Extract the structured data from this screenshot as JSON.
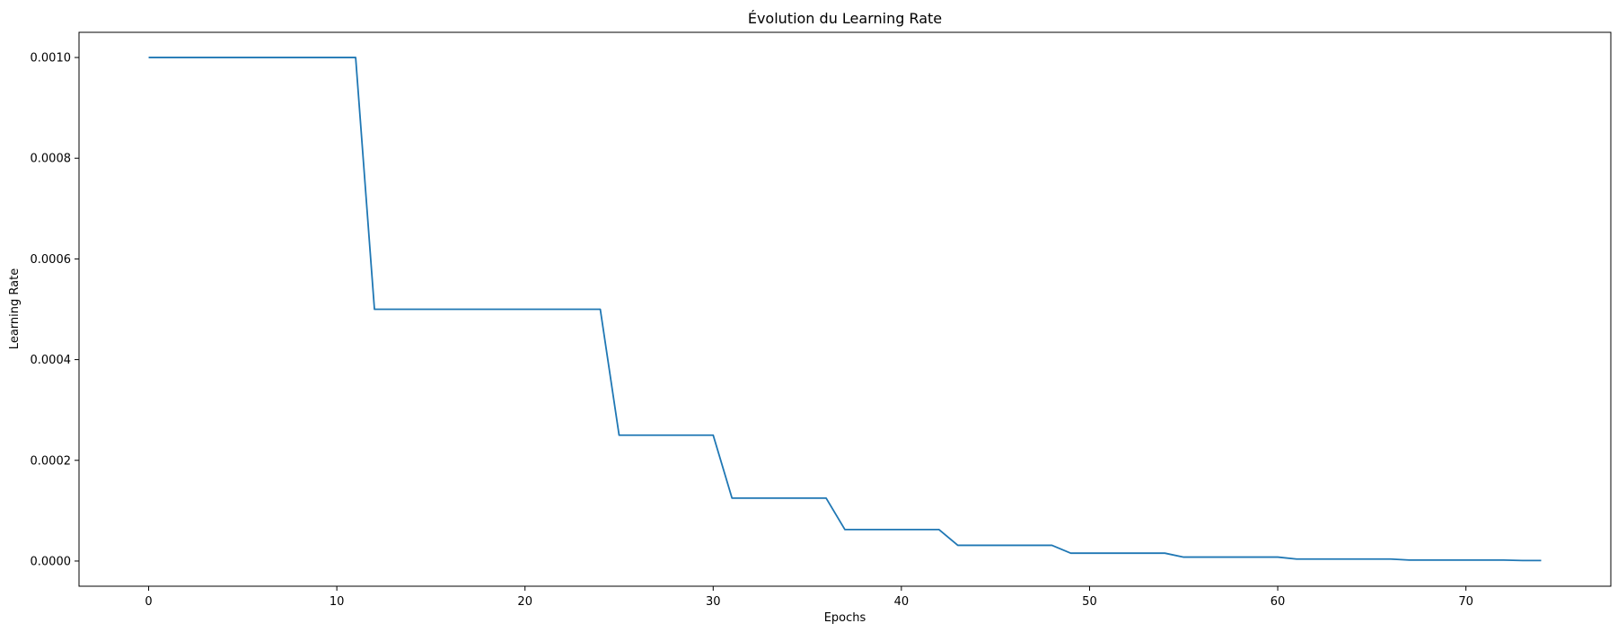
{
  "chart_data": {
    "type": "line",
    "title": "Évolution du Learning Rate",
    "xlabel": "Epochs",
    "ylabel": "Learning Rate",
    "xlim": [
      -3.7,
      77.7
    ],
    "ylim": [
      -5e-05,
      0.00105
    ],
    "x_ticks": [
      0,
      10,
      20,
      30,
      40,
      50,
      60,
      70
    ],
    "x_tick_labels": [
      "0",
      "10",
      "20",
      "30",
      "40",
      "50",
      "60",
      "70"
    ],
    "y_ticks": [
      0.0,
      0.0002,
      0.0004,
      0.0006,
      0.0008,
      0.001
    ],
    "y_tick_labels": [
      "0.0000",
      "0.0002",
      "0.0004",
      "0.0006",
      "0.0008",
      "0.0010"
    ],
    "grid": false,
    "legend": "none",
    "series": [
      {
        "color": "#1f77b4",
        "x": [
          0,
          1,
          2,
          3,
          4,
          5,
          6,
          7,
          8,
          9,
          10,
          11,
          12,
          13,
          14,
          15,
          16,
          17,
          18,
          19,
          20,
          21,
          22,
          23,
          24,
          25,
          26,
          27,
          28,
          29,
          30,
          31,
          32,
          33,
          34,
          35,
          36,
          37,
          38,
          39,
          40,
          41,
          42,
          43,
          44,
          45,
          46,
          47,
          48,
          49,
          50,
          51,
          52,
          53,
          54,
          55,
          56,
          57,
          58,
          59,
          60,
          61,
          62,
          63,
          64,
          65,
          66,
          67,
          68,
          69,
          70,
          71,
          72,
          73,
          74
        ],
        "values": [
          0.001,
          0.001,
          0.001,
          0.001,
          0.001,
          0.001,
          0.001,
          0.001,
          0.001,
          0.001,
          0.001,
          0.001,
          0.0005,
          0.0005,
          0.0005,
          0.0005,
          0.0005,
          0.0005,
          0.0005,
          0.0005,
          0.0005,
          0.0005,
          0.0005,
          0.0005,
          0.0005,
          0.00025,
          0.00025,
          0.00025,
          0.00025,
          0.00025,
          0.00025,
          0.000125,
          0.000125,
          0.000125,
          0.000125,
          0.000125,
          0.000125,
          6.25e-05,
          6.25e-05,
          6.25e-05,
          6.25e-05,
          6.25e-05,
          6.25e-05,
          3.125e-05,
          3.125e-05,
          3.125e-05,
          3.125e-05,
          3.125e-05,
          3.125e-05,
          1.5625e-05,
          1.5625e-05,
          1.5625e-05,
          1.5625e-05,
          1.5625e-05,
          1.5625e-05,
          7.8125e-06,
          7.8125e-06,
          7.8125e-06,
          7.8125e-06,
          7.8125e-06,
          7.8125e-06,
          3.90625e-06,
          3.90625e-06,
          3.90625e-06,
          3.90625e-06,
          3.90625e-06,
          3.90625e-06,
          1.953125e-06,
          1.953125e-06,
          1.953125e-06,
          1.953125e-06,
          1.953125e-06,
          1.953125e-06,
          9.765625e-07,
          9.765625e-07
        ]
      }
    ]
  }
}
